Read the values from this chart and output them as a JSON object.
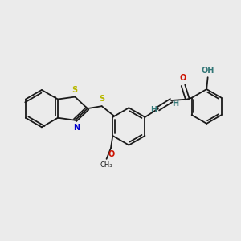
{
  "bg_color": "#ebebeb",
  "bond_color": "#1a1a1a",
  "S_color": "#b8b800",
  "N_color": "#0000cc",
  "O_color": "#cc1100",
  "H_color": "#337777",
  "figsize": [
    3.0,
    3.0
  ],
  "dpi": 100,
  "xlim": [
    0,
    10
  ],
  "ylim": [
    0,
    10
  ]
}
